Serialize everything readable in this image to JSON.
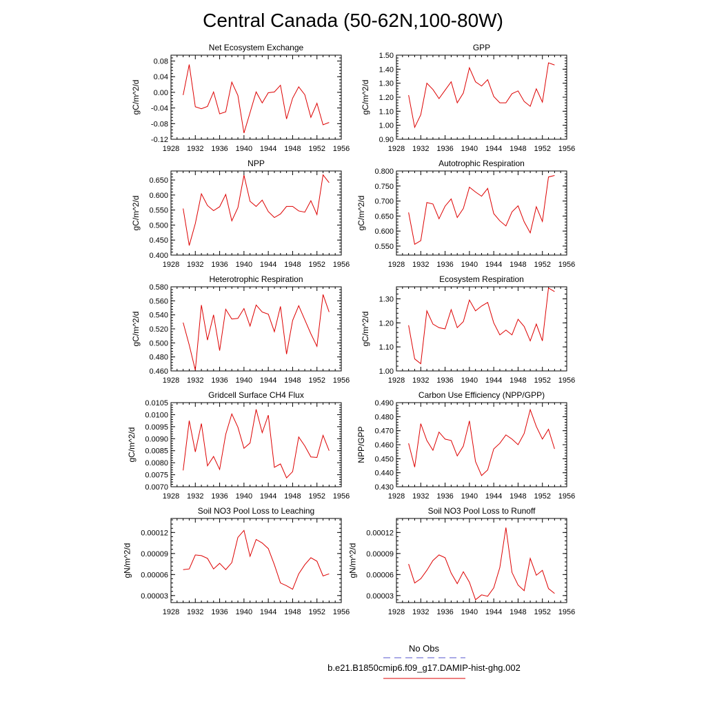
{
  "page": {
    "title": "Central Canada (50-62N,100-80W)"
  },
  "legend": {
    "entries": [
      {
        "label": "No Obs",
        "color": "#5555cc",
        "dash": "dashed"
      },
      {
        "label": "b.e21.B1850cmip6.f09_g17.DAMIP-hist-ghg.002",
        "color": "#dd0000",
        "dash": "solid"
      }
    ]
  },
  "chart_data": [
    {
      "type": "line",
      "title": "Net Ecosystem Exchange",
      "ylabel": "gC/m^2/d",
      "xlim": [
        1928,
        1956
      ],
      "xticks": [
        1928,
        1932,
        1936,
        1940,
        1944,
        1948,
        1952,
        1956
      ],
      "ylim": [
        -0.12,
        0.095
      ],
      "yticks": [
        -0.12,
        -0.08,
        -0.04,
        0.0,
        0.04,
        0.08
      ],
      "ytick_decimals": 2,
      "x": [
        1930,
        1931,
        1932,
        1933,
        1934,
        1935,
        1936,
        1937,
        1938,
        1939,
        1940,
        1941,
        1942,
        1943,
        1944,
        1945,
        1946,
        1947,
        1948,
        1949,
        1950,
        1951,
        1952,
        1953,
        1954
      ],
      "series": [
        {
          "color": "#dd0000",
          "values": [
            -0.007,
            0.071,
            -0.037,
            -0.042,
            -0.036,
            0.001,
            -0.055,
            -0.05,
            0.026,
            -0.008,
            -0.104,
            -0.052,
            0.001,
            -0.027,
            -0.001,
            0.001,
            0.018,
            -0.068,
            -0.015,
            0.014,
            -0.006,
            -0.064,
            -0.028,
            -0.083,
            -0.077
          ]
        }
      ]
    },
    {
      "type": "line",
      "title": "GPP",
      "ylabel": "gC/m^2/d",
      "xlim": [
        1928,
        1956
      ],
      "xticks": [
        1928,
        1932,
        1936,
        1940,
        1944,
        1948,
        1952,
        1956
      ],
      "ylim": [
        0.9,
        1.5
      ],
      "yticks": [
        0.9,
        1.0,
        1.1,
        1.2,
        1.3,
        1.4,
        1.5
      ],
      "ytick_decimals": 2,
      "x": [
        1930,
        1931,
        1932,
        1933,
        1934,
        1935,
        1936,
        1937,
        1938,
        1939,
        1940,
        1941,
        1942,
        1943,
        1944,
        1945,
        1946,
        1947,
        1948,
        1949,
        1950,
        1951,
        1952,
        1953,
        1954
      ],
      "series": [
        {
          "color": "#dd0000",
          "values": [
            1.215,
            0.985,
            1.075,
            1.3,
            1.255,
            1.19,
            1.25,
            1.31,
            1.16,
            1.23,
            1.41,
            1.31,
            1.28,
            1.325,
            1.205,
            1.16,
            1.16,
            1.225,
            1.245,
            1.17,
            1.135,
            1.26,
            1.165,
            1.445,
            1.43
          ]
        }
      ]
    },
    {
      "type": "line",
      "title": "NPP",
      "ylabel": "gC/m^2/d",
      "xlim": [
        1928,
        1956
      ],
      "xticks": [
        1928,
        1932,
        1936,
        1940,
        1944,
        1948,
        1952,
        1956
      ],
      "ylim": [
        0.4,
        0.68
      ],
      "yticks": [
        0.4,
        0.45,
        0.5,
        0.55,
        0.6,
        0.65
      ],
      "ytick_decimals": 3,
      "x": [
        1930,
        1931,
        1932,
        1933,
        1934,
        1935,
        1936,
        1937,
        1938,
        1939,
        1940,
        1941,
        1942,
        1943,
        1944,
        1945,
        1946,
        1947,
        1948,
        1949,
        1950,
        1951,
        1952,
        1953,
        1954
      ],
      "series": [
        {
          "color": "#dd0000",
          "values": [
            0.555,
            0.432,
            0.505,
            0.604,
            0.565,
            0.548,
            0.561,
            0.602,
            0.514,
            0.558,
            0.666,
            0.579,
            0.562,
            0.583,
            0.545,
            0.525,
            0.537,
            0.562,
            0.562,
            0.547,
            0.543,
            0.581,
            0.535,
            0.667,
            0.641
          ]
        }
      ]
    },
    {
      "type": "line",
      "title": "Autotrophic Respiration",
      "ylabel": "gC/m^2/d",
      "xlim": [
        1928,
        1956
      ],
      "xticks": [
        1928,
        1932,
        1936,
        1940,
        1944,
        1948,
        1952,
        1956
      ],
      "ylim": [
        0.52,
        0.8
      ],
      "yticks": [
        0.55,
        0.6,
        0.65,
        0.7,
        0.75,
        0.8
      ],
      "ytick_decimals": 3,
      "x": [
        1930,
        1931,
        1932,
        1933,
        1934,
        1935,
        1936,
        1937,
        1938,
        1939,
        1940,
        1941,
        1942,
        1943,
        1944,
        1945,
        1946,
        1947,
        1948,
        1949,
        1950,
        1951,
        1952,
        1953,
        1954
      ],
      "series": [
        {
          "color": "#dd0000",
          "values": [
            0.662,
            0.556,
            0.568,
            0.695,
            0.69,
            0.641,
            0.683,
            0.707,
            0.645,
            0.675,
            0.746,
            0.73,
            0.716,
            0.742,
            0.658,
            0.634,
            0.617,
            0.664,
            0.684,
            0.631,
            0.594,
            0.681,
            0.632,
            0.78,
            0.785
          ]
        }
      ]
    },
    {
      "type": "line",
      "title": "Heterotrophic Respiration",
      "ylabel": "gC/m^2/d",
      "xlim": [
        1928,
        1956
      ],
      "xticks": [
        1928,
        1932,
        1936,
        1940,
        1944,
        1948,
        1952,
        1956
      ],
      "ylim": [
        0.46,
        0.58
      ],
      "yticks": [
        0.46,
        0.48,
        0.5,
        0.52,
        0.54,
        0.56,
        0.58
      ],
      "ytick_decimals": 3,
      "x": [
        1930,
        1931,
        1932,
        1933,
        1934,
        1935,
        1936,
        1937,
        1938,
        1939,
        1940,
        1941,
        1942,
        1943,
        1944,
        1945,
        1946,
        1947,
        1948,
        1949,
        1950,
        1951,
        1952,
        1953,
        1954
      ],
      "series": [
        {
          "color": "#dd0000",
          "values": [
            0.529,
            0.497,
            0.461,
            0.554,
            0.504,
            0.54,
            0.489,
            0.548,
            0.534,
            0.535,
            0.549,
            0.524,
            0.554,
            0.544,
            0.541,
            0.516,
            0.552,
            0.484,
            0.532,
            0.553,
            0.533,
            0.513,
            0.495,
            0.569,
            0.544
          ]
        }
      ]
    },
    {
      "type": "line",
      "title": "Ecosystem Respiration",
      "ylabel": "gC/m^2/d",
      "xlim": [
        1928,
        1956
      ],
      "xticks": [
        1928,
        1932,
        1936,
        1940,
        1944,
        1948,
        1952,
        1956
      ],
      "ylim": [
        1.0,
        1.35
      ],
      "yticks": [
        1.0,
        1.1,
        1.2,
        1.3
      ],
      "ytick_decimals": 2,
      "x": [
        1930,
        1931,
        1932,
        1933,
        1934,
        1935,
        1936,
        1937,
        1938,
        1939,
        1940,
        1941,
        1942,
        1943,
        1944,
        1945,
        1946,
        1947,
        1948,
        1949,
        1950,
        1951,
        1952,
        1953,
        1954
      ],
      "series": [
        {
          "color": "#dd0000",
          "values": [
            1.19,
            1.05,
            1.03,
            1.25,
            1.195,
            1.18,
            1.175,
            1.255,
            1.18,
            1.205,
            1.295,
            1.25,
            1.27,
            1.285,
            1.2,
            1.15,
            1.17,
            1.15,
            1.215,
            1.185,
            1.125,
            1.195,
            1.125,
            1.345,
            1.33
          ]
        }
      ]
    },
    {
      "type": "line",
      "title": "Gridcell Surface CH4 Flux",
      "ylabel": "gC/m^2/d",
      "xlim": [
        1928,
        1956
      ],
      "xticks": [
        1928,
        1932,
        1936,
        1940,
        1944,
        1948,
        1952,
        1956
      ],
      "ylim": [
        0.007,
        0.0105
      ],
      "yticks": [
        0.007,
        0.0075,
        0.008,
        0.0085,
        0.009,
        0.0095,
        0.01,
        0.0105
      ],
      "ytick_decimals": 4,
      "x": [
        1930,
        1931,
        1932,
        1933,
        1934,
        1935,
        1936,
        1937,
        1938,
        1939,
        1940,
        1941,
        1942,
        1943,
        1944,
        1945,
        1946,
        1947,
        1948,
        1949,
        1950,
        1951,
        1952,
        1953,
        1954
      ],
      "series": [
        {
          "color": "#dd0000",
          "values": [
            0.00768,
            0.00975,
            0.00845,
            0.00963,
            0.00787,
            0.00826,
            0.00772,
            0.00918,
            0.01003,
            0.00948,
            0.0086,
            0.00882,
            0.01022,
            0.00925,
            0.00998,
            0.00781,
            0.00795,
            0.00737,
            0.00763,
            0.00907,
            0.0087,
            0.00824,
            0.00822,
            0.00914,
            0.0085
          ]
        }
      ]
    },
    {
      "type": "line",
      "title": "Carbon Use Efficiency (NPP/GPP)",
      "ylabel": "NPP/GPP",
      "xlim": [
        1928,
        1956
      ],
      "xticks": [
        1928,
        1932,
        1936,
        1940,
        1944,
        1948,
        1952,
        1956
      ],
      "ylim": [
        0.43,
        0.49
      ],
      "yticks": [
        0.43,
        0.44,
        0.45,
        0.46,
        0.47,
        0.48,
        0.49
      ],
      "ytick_decimals": 3,
      "x": [
        1930,
        1931,
        1932,
        1933,
        1934,
        1935,
        1936,
        1937,
        1938,
        1939,
        1940,
        1941,
        1942,
        1943,
        1944,
        1945,
        1946,
        1947,
        1948,
        1949,
        1950,
        1951,
        1952,
        1953,
        1954
      ],
      "series": [
        {
          "color": "#dd0000",
          "values": [
            0.461,
            0.444,
            0.475,
            0.463,
            0.456,
            0.469,
            0.464,
            0.463,
            0.452,
            0.459,
            0.477,
            0.448,
            0.438,
            0.442,
            0.457,
            0.461,
            0.467,
            0.464,
            0.46,
            0.468,
            0.485,
            0.473,
            0.464,
            0.471,
            0.457
          ]
        }
      ]
    },
    {
      "type": "line",
      "title": "Soil NO3 Pool Loss to Leaching",
      "ylabel": "gN/m^2/d",
      "xlim": [
        1928,
        1956
      ],
      "xticks": [
        1928,
        1932,
        1936,
        1940,
        1944,
        1948,
        1952,
        1956
      ],
      "ylim": [
        2e-05,
        0.00014
      ],
      "yticks": [
        3e-05,
        6e-05,
        9e-05,
        0.00012
      ],
      "ytick_decimals": 5,
      "x": [
        1930,
        1931,
        1932,
        1933,
        1934,
        1935,
        1936,
        1937,
        1938,
        1939,
        1940,
        1941,
        1942,
        1943,
        1944,
        1945,
        1946,
        1947,
        1948,
        1949,
        1950,
        1951,
        1952,
        1953,
        1954
      ],
      "series": [
        {
          "color": "#dd0000",
          "values": [
            6.7e-05,
            6.8e-05,
            8.8e-05,
            8.7e-05,
            8.3e-05,
            6.8e-05,
            7.6e-05,
            6.7e-05,
            7.7e-05,
            0.000113,
            0.000123,
            8.6e-05,
            0.00011,
            0.000105,
            9.7e-05,
            7.4e-05,
            4.8e-05,
            4.4e-05,
            3.9e-05,
            6.1e-05,
            7.4e-05,
            8.4e-05,
            7.9e-05,
            5.8e-05,
            6.1e-05
          ]
        }
      ]
    },
    {
      "type": "line",
      "title": "Soil NO3 Pool Loss to Runoff",
      "ylabel": "gN/m^2/d",
      "xlim": [
        1928,
        1956
      ],
      "xticks": [
        1928,
        1932,
        1936,
        1940,
        1944,
        1948,
        1952,
        1956
      ],
      "ylim": [
        2e-05,
        0.00014
      ],
      "yticks": [
        3e-05,
        6e-05,
        9e-05,
        0.00012
      ],
      "ytick_decimals": 5,
      "x": [
        1930,
        1931,
        1932,
        1933,
        1934,
        1935,
        1936,
        1937,
        1938,
        1939,
        1940,
        1941,
        1942,
        1943,
        1944,
        1945,
        1946,
        1947,
        1948,
        1949,
        1950,
        1951,
        1952,
        1953,
        1954
      ],
      "series": [
        {
          "color": "#dd0000",
          "values": [
            7.5e-05,
            4.8e-05,
            5.4e-05,
            6.6e-05,
            8e-05,
            8.8e-05,
            8.4e-05,
            6.2e-05,
            4.7e-05,
            6.4e-05,
            4.9e-05,
            2.4e-05,
            3.1e-05,
            2.9e-05,
            4.1e-05,
            7e-05,
            0.000127,
            6.3e-05,
            4.5e-05,
            3.7e-05,
            8.3e-05,
            5.9e-05,
            6.6e-05,
            4e-05,
            3.3e-05
          ]
        }
      ]
    }
  ]
}
